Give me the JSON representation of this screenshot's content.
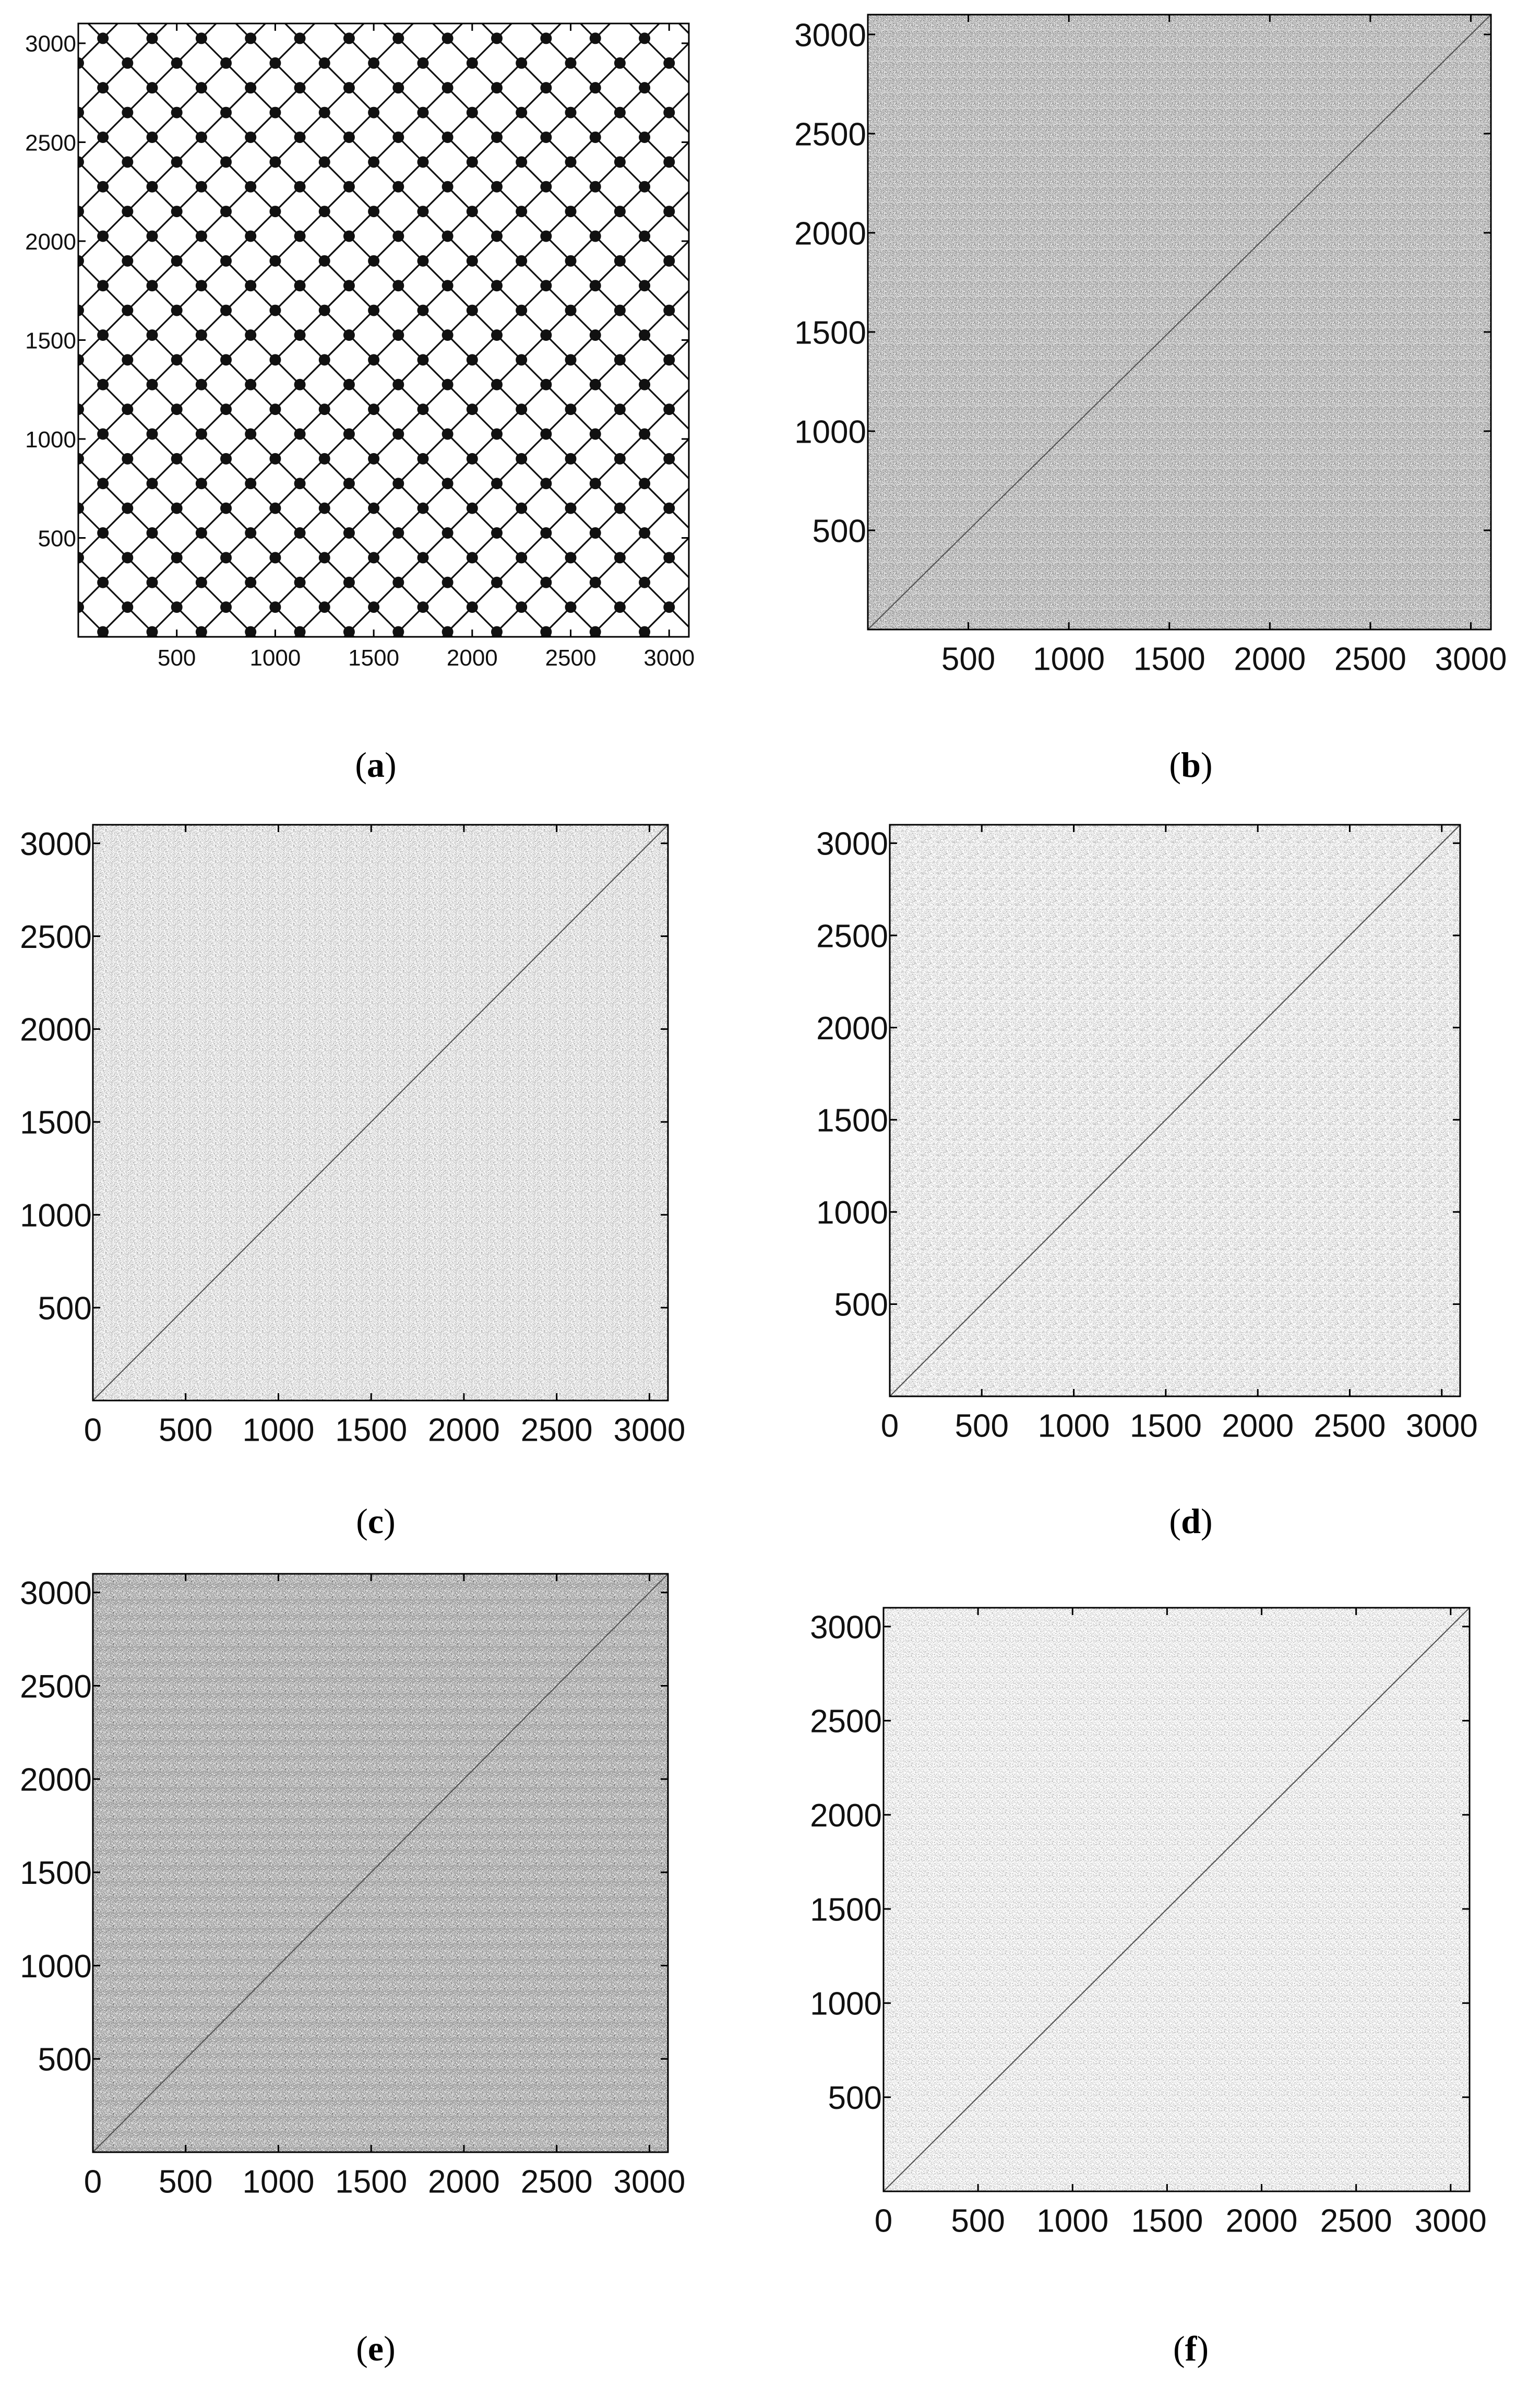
{
  "figure": {
    "panels": [
      {
        "caption_open": "(",
        "caption_letter": "a",
        "caption_close": ")"
      },
      {
        "caption_open": "(",
        "caption_letter": "b",
        "caption_close": ")"
      },
      {
        "caption_open": "(",
        "caption_letter": "c",
        "caption_close": ")"
      },
      {
        "caption_open": "(",
        "caption_letter": "d",
        "caption_close": ")"
      },
      {
        "caption_open": "(",
        "caption_letter": "e",
        "caption_close": ")"
      },
      {
        "caption_open": "(",
        "caption_letter": "f",
        "caption_close": ")"
      }
    ]
  },
  "chart_data": [
    {
      "type": "heatmap",
      "title": "",
      "xlabel": "",
      "ylabel": "",
      "xlim": [
        0,
        3100
      ],
      "ylim": [
        0,
        3100
      ],
      "xticks": [
        500,
        1000,
        1500,
        2000,
        2500,
        3000
      ],
      "yticks": [
        500,
        1000,
        1500,
        2000,
        2500,
        3000
      ],
      "xtick_labels": [
        "500",
        "1000",
        "1500",
        "2000",
        "2500",
        "3000"
      ],
      "ytick_labels": [
        "500",
        "1000",
        "1500",
        "2000",
        "2500",
        "3000"
      ],
      "pattern": "diamond-lattice",
      "lattice_period": 250,
      "density": 0.0,
      "diagonal": false,
      "line_color": "#111111",
      "grid": false,
      "legend": "none"
    },
    {
      "type": "heatmap",
      "title": "",
      "xlabel": "",
      "ylabel": "",
      "xlim": [
        0,
        3100
      ],
      "ylim": [
        0,
        3100
      ],
      "xticks": [
        500,
        1000,
        1500,
        2000,
        2500,
        3000
      ],
      "yticks": [
        500,
        1000,
        1500,
        2000,
        2500,
        3000
      ],
      "xtick_labels": [
        "500",
        "1000",
        "1500",
        "2000",
        "2500",
        "3000"
      ],
      "ytick_labels": [
        "500",
        "1000",
        "1500",
        "2000",
        "2500",
        "3000"
      ],
      "pattern": "dense-texture",
      "density": 0.62,
      "diagonal": true,
      "grid": false,
      "legend": "none"
    },
    {
      "type": "heatmap",
      "title": "",
      "xlabel": "",
      "ylabel": "",
      "xlim": [
        0,
        3100
      ],
      "ylim": [
        0,
        3100
      ],
      "xticks": [
        0,
        500,
        1000,
        1500,
        2000,
        2500,
        3000
      ],
      "yticks": [
        500,
        1000,
        1500,
        2000,
        2500,
        3000
      ],
      "xtick_labels": [
        "0",
        "500",
        "1000",
        "1500",
        "2000",
        "2500",
        "3000"
      ],
      "ytick_labels": [
        "500",
        "1000",
        "1500",
        "2000",
        "2500",
        "3000"
      ],
      "pattern": "sparse-texture",
      "density": 0.3,
      "diagonal": true,
      "grid": false,
      "legend": "none"
    },
    {
      "type": "heatmap",
      "title": "",
      "xlabel": "",
      "ylabel": "",
      "xlim": [
        0,
        3100
      ],
      "ylim": [
        0,
        3100
      ],
      "xticks": [
        0,
        500,
        1000,
        1500,
        2000,
        2500,
        3000
      ],
      "yticks": [
        500,
        1000,
        1500,
        2000,
        2500,
        3000
      ],
      "xtick_labels": [
        "0",
        "500",
        "1000",
        "1500",
        "2000",
        "2500",
        "3000"
      ],
      "ytick_labels": [
        "500",
        "1000",
        "1500",
        "2000",
        "2500",
        "3000"
      ],
      "pattern": "sparse-texture",
      "density": 0.22,
      "diagonal": true,
      "grid": false,
      "legend": "none"
    },
    {
      "type": "heatmap",
      "title": "",
      "xlabel": "",
      "ylabel": "",
      "xlim": [
        0,
        3100
      ],
      "ylim": [
        0,
        3100
      ],
      "xticks": [
        0,
        500,
        1000,
        1500,
        2000,
        2500,
        3000
      ],
      "yticks": [
        500,
        1000,
        1500,
        2000,
        2500,
        3000
      ],
      "xtick_labels": [
        "0",
        "500",
        "1000",
        "1500",
        "2000",
        "2500",
        "3000"
      ],
      "ytick_labels": [
        "500",
        "1000",
        "1500",
        "2000",
        "2500",
        "3000"
      ],
      "pattern": "dense-texture",
      "density": 0.7,
      "diagonal": true,
      "grid": false,
      "legend": "none"
    },
    {
      "type": "heatmap",
      "title": "",
      "xlabel": "",
      "ylabel": "",
      "xlim": [
        0,
        3100
      ],
      "ylim": [
        0,
        3100
      ],
      "xticks": [
        0,
        500,
        1000,
        1500,
        2000,
        2500,
        3000
      ],
      "yticks": [
        500,
        1000,
        1500,
        2000,
        2500,
        3000
      ],
      "xtick_labels": [
        "0",
        "500",
        "1000",
        "1500",
        "2000",
        "2500",
        "3000"
      ],
      "ytick_labels": [
        "500",
        "1000",
        "1500",
        "2000",
        "2500",
        "3000"
      ],
      "pattern": "sparse-texture",
      "density": 0.2,
      "diagonal": true,
      "grid": false,
      "legend": "none"
    }
  ]
}
